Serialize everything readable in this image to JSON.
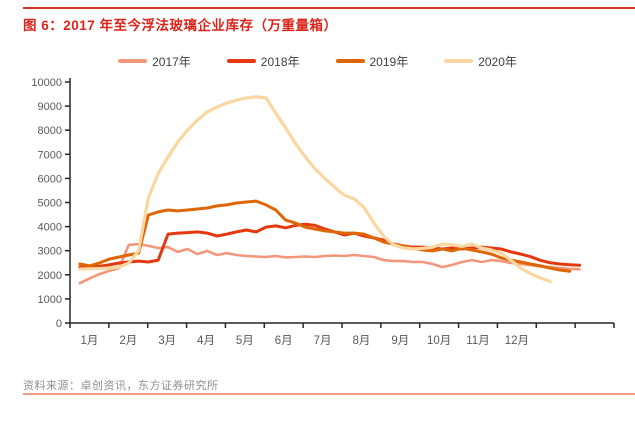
{
  "page": {
    "title": "图 6：2017 年至今浮法玻璃企业库存（万重量箱）",
    "source": "资料来源：卓创资讯，东方证券研究所"
  },
  "colors": {
    "top_rule": "#D93324",
    "title_red": "#DA251C",
    "axis": "#262626",
    "tick_label": "#595959",
    "legend_text": "#3F3F3F",
    "source_text": "#8F8F8F",
    "footer_rule": "#F09A8A"
  },
  "chart_data": {
    "type": "line",
    "title": "2017 年至今浮法玻璃企业库存（万重量箱）",
    "xlabel": "",
    "ylabel": "",
    "grid": false,
    "legend_position": "top",
    "y_axis": {
      "min": 0,
      "max": 10000,
      "step": 1000
    },
    "x_axis": {
      "unit": "week-of-year",
      "weeks_per_year": 52,
      "tick_count": 15,
      "month_labels": [
        "1月",
        "2月",
        "3月",
        "4月",
        "5月",
        "6月",
        "7月",
        "8月",
        "9月",
        "10月",
        "11月",
        "12月"
      ]
    },
    "series": [
      {
        "name": "2017年",
        "color": "#F3977B",
        "width": 2.6,
        "points": [
          [
            1,
            1650
          ],
          [
            2,
            1850
          ],
          [
            3,
            2030
          ],
          [
            4,
            2160
          ],
          [
            5,
            2280
          ],
          [
            6,
            3240
          ],
          [
            7,
            3280
          ],
          [
            8,
            3200
          ],
          [
            9,
            3110
          ],
          [
            10,
            3150
          ],
          [
            11,
            2950
          ],
          [
            12,
            3070
          ],
          [
            13,
            2860
          ],
          [
            14,
            2990
          ],
          [
            15,
            2820
          ],
          [
            16,
            2900
          ],
          [
            17,
            2820
          ],
          [
            18,
            2780
          ],
          [
            19,
            2760
          ],
          [
            20,
            2740
          ],
          [
            21,
            2780
          ],
          [
            22,
            2720
          ],
          [
            23,
            2740
          ],
          [
            24,
            2760
          ],
          [
            25,
            2740
          ],
          [
            26,
            2780
          ],
          [
            27,
            2800
          ],
          [
            28,
            2780
          ],
          [
            29,
            2820
          ],
          [
            30,
            2780
          ],
          [
            31,
            2740
          ],
          [
            32,
            2610
          ],
          [
            33,
            2570
          ],
          [
            34,
            2570
          ],
          [
            35,
            2530
          ],
          [
            36,
            2530
          ],
          [
            37,
            2450
          ],
          [
            38,
            2320
          ],
          [
            39,
            2410
          ],
          [
            40,
            2530
          ],
          [
            41,
            2610
          ],
          [
            42,
            2530
          ],
          [
            43,
            2610
          ],
          [
            44,
            2570
          ],
          [
            45,
            2490
          ],
          [
            46,
            2450
          ],
          [
            47,
            2400
          ],
          [
            48,
            2350
          ],
          [
            49,
            2320
          ],
          [
            50,
            2280
          ],
          [
            51,
            2250
          ],
          [
            52,
            2230
          ]
        ]
      },
      {
        "name": "2018年",
        "color": "#E5380F",
        "width": 3,
        "points": [
          [
            1,
            2320
          ],
          [
            2,
            2300
          ],
          [
            3,
            2350
          ],
          [
            4,
            2410
          ],
          [
            5,
            2490
          ],
          [
            6,
            2530
          ],
          [
            7,
            2570
          ],
          [
            8,
            2530
          ],
          [
            9,
            2610
          ],
          [
            10,
            3690
          ],
          [
            11,
            3730
          ],
          [
            12,
            3750
          ],
          [
            13,
            3780
          ],
          [
            14,
            3730
          ],
          [
            15,
            3610
          ],
          [
            16,
            3690
          ],
          [
            17,
            3780
          ],
          [
            18,
            3860
          ],
          [
            19,
            3780
          ],
          [
            20,
            3980
          ],
          [
            21,
            4030
          ],
          [
            22,
            3950
          ],
          [
            23,
            4050
          ],
          [
            24,
            4100
          ],
          [
            25,
            4050
          ],
          [
            26,
            3900
          ],
          [
            27,
            3780
          ],
          [
            28,
            3650
          ],
          [
            29,
            3730
          ],
          [
            30,
            3610
          ],
          [
            31,
            3530
          ],
          [
            32,
            3440
          ],
          [
            33,
            3280
          ],
          [
            34,
            3200
          ],
          [
            35,
            3150
          ],
          [
            36,
            3150
          ],
          [
            37,
            3110
          ],
          [
            38,
            3070
          ],
          [
            39,
            3110
          ],
          [
            40,
            3070
          ],
          [
            41,
            3110
          ],
          [
            42,
            3150
          ],
          [
            43,
            3110
          ],
          [
            44,
            3070
          ],
          [
            45,
            2950
          ],
          [
            46,
            2860
          ],
          [
            47,
            2750
          ],
          [
            48,
            2600
          ],
          [
            49,
            2500
          ],
          [
            50,
            2450
          ],
          [
            51,
            2420
          ],
          [
            52,
            2400
          ]
        ]
      },
      {
        "name": "2019年",
        "color": "#DE6607",
        "width": 3,
        "points": [
          [
            1,
            2450
          ],
          [
            2,
            2370
          ],
          [
            3,
            2490
          ],
          [
            4,
            2650
          ],
          [
            5,
            2740
          ],
          [
            6,
            2820
          ],
          [
            7,
            2900
          ],
          [
            8,
            4480
          ],
          [
            9,
            4610
          ],
          [
            10,
            4690
          ],
          [
            11,
            4650
          ],
          [
            12,
            4690
          ],
          [
            13,
            4730
          ],
          [
            14,
            4770
          ],
          [
            15,
            4860
          ],
          [
            16,
            4900
          ],
          [
            17,
            4980
          ],
          [
            18,
            5020
          ],
          [
            19,
            5060
          ],
          [
            20,
            4900
          ],
          [
            21,
            4690
          ],
          [
            22,
            4270
          ],
          [
            23,
            4150
          ],
          [
            24,
            3980
          ],
          [
            25,
            3900
          ],
          [
            26,
            3820
          ],
          [
            27,
            3780
          ],
          [
            28,
            3730
          ],
          [
            29,
            3730
          ],
          [
            30,
            3690
          ],
          [
            31,
            3530
          ],
          [
            32,
            3360
          ],
          [
            33,
            3280
          ],
          [
            34,
            3200
          ],
          [
            35,
            3110
          ],
          [
            36,
            3030
          ],
          [
            37,
            2990
          ],
          [
            38,
            3070
          ],
          [
            39,
            2990
          ],
          [
            40,
            3110
          ],
          [
            41,
            3030
          ],
          [
            42,
            2950
          ],
          [
            43,
            2860
          ],
          [
            44,
            2700
          ],
          [
            45,
            2610
          ],
          [
            46,
            2530
          ],
          [
            47,
            2450
          ],
          [
            48,
            2370
          ],
          [
            49,
            2280
          ],
          [
            50,
            2200
          ],
          [
            51,
            2150
          ]
        ]
      },
      {
        "name": "2020年",
        "color": "#FAD7A1",
        "width": 3.2,
        "points": [
          [
            1,
            2240
          ],
          [
            2,
            2250
          ],
          [
            3,
            2260
          ],
          [
            4,
            2280
          ],
          [
            5,
            2320
          ],
          [
            6,
            2490
          ],
          [
            7,
            3000
          ],
          [
            8,
            5200
          ],
          [
            9,
            6200
          ],
          [
            10,
            6890
          ],
          [
            11,
            7510
          ],
          [
            12,
            8010
          ],
          [
            13,
            8420
          ],
          [
            14,
            8760
          ],
          [
            15,
            8960
          ],
          [
            16,
            9130
          ],
          [
            17,
            9250
          ],
          [
            18,
            9340
          ],
          [
            19,
            9380
          ],
          [
            20,
            9340
          ],
          [
            21,
            8700
          ],
          [
            22,
            8100
          ],
          [
            23,
            7450
          ],
          [
            24,
            6900
          ],
          [
            25,
            6400
          ],
          [
            26,
            6000
          ],
          [
            27,
            5640
          ],
          [
            28,
            5300
          ],
          [
            29,
            5150
          ],
          [
            30,
            4800
          ],
          [
            31,
            4150
          ],
          [
            32,
            3600
          ],
          [
            33,
            3250
          ],
          [
            34,
            3110
          ],
          [
            35,
            3070
          ],
          [
            36,
            3100
          ],
          [
            37,
            3150
          ],
          [
            38,
            3280
          ],
          [
            39,
            3240
          ],
          [
            40,
            3180
          ],
          [
            41,
            3280
          ],
          [
            42,
            3110
          ],
          [
            43,
            3030
          ],
          [
            44,
            2900
          ],
          [
            45,
            2600
          ],
          [
            46,
            2280
          ],
          [
            47,
            2050
          ],
          [
            48,
            1870
          ],
          [
            49,
            1720
          ]
        ]
      }
    ]
  }
}
